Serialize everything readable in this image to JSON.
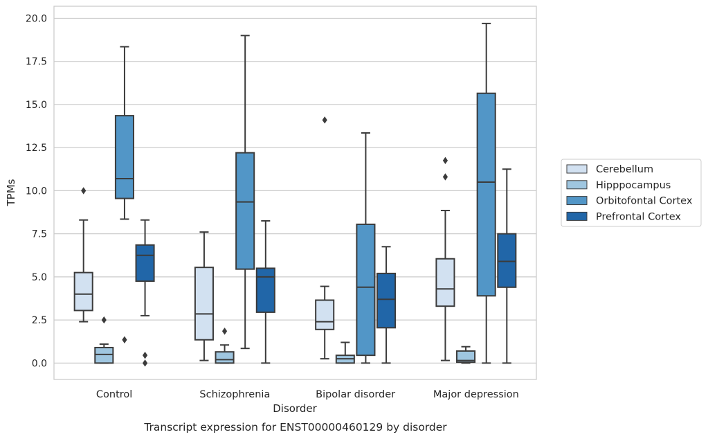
{
  "chart_data": {
    "type": "box",
    "xlabel": "Disorder",
    "ylabel": "TPMs",
    "caption": "Transcript expression for ENST00000460129 by disorder",
    "ylim": [
      -0.95,
      20.7
    ],
    "yticks": [
      "0.0",
      "2.5",
      "5.0",
      "7.5",
      "10.0",
      "12.5",
      "15.0",
      "17.5",
      "20.0"
    ],
    "grid": true,
    "legend_position": "right",
    "categories": [
      "Control",
      "Schizophrenia",
      "Bipolar disorder",
      "Major depression"
    ],
    "series": [
      {
        "name": "Cerebellum",
        "color": "#d2e1f1",
        "boxes": [
          {
            "whisker_low": 2.4,
            "q1": 3.05,
            "median": 4.0,
            "q3": 5.25,
            "whisker_high": 8.3,
            "outliers": [
              10.0
            ]
          },
          {
            "whisker_low": 0.15,
            "q1": 1.35,
            "median": 2.85,
            "q3": 5.55,
            "whisker_high": 7.6,
            "outliers": []
          },
          {
            "whisker_low": 0.25,
            "q1": 1.95,
            "median": 2.4,
            "q3": 3.65,
            "whisker_high": 4.45,
            "outliers": [
              14.1
            ]
          },
          {
            "whisker_low": 0.15,
            "q1": 3.3,
            "median": 4.3,
            "q3": 6.05,
            "whisker_high": 8.85,
            "outliers": [
              10.8,
              11.75
            ]
          }
        ]
      },
      {
        "name": "Hipppocampus",
        "color": "#9fc6e0",
        "boxes": [
          {
            "whisker_low": 0.0,
            "q1": 0.0,
            "median": 0.5,
            "q3": 0.9,
            "whisker_high": 1.1,
            "outliers": [
              2.5
            ]
          },
          {
            "whisker_low": 0.0,
            "q1": 0.0,
            "median": 0.2,
            "q3": 0.65,
            "whisker_high": 1.05,
            "outliers": [
              1.85
            ]
          },
          {
            "whisker_low": 0.0,
            "q1": 0.0,
            "median": 0.25,
            "q3": 0.45,
            "whisker_high": 1.2,
            "outliers": []
          },
          {
            "whisker_low": 0.0,
            "q1": 0.05,
            "median": 0.15,
            "q3": 0.7,
            "whisker_high": 0.95,
            "outliers": []
          }
        ]
      },
      {
        "name": "Orbitofontal Cortex",
        "color": "#5296c7",
        "boxes": [
          {
            "whisker_low": 8.35,
            "q1": 9.55,
            "median": 10.7,
            "q3": 14.35,
            "whisker_high": 18.35,
            "outliers": [
              1.35
            ]
          },
          {
            "whisker_low": 0.85,
            "q1": 5.45,
            "median": 9.35,
            "q3": 12.2,
            "whisker_high": 19.0,
            "outliers": []
          },
          {
            "whisker_low": 0.0,
            "q1": 0.45,
            "median": 4.4,
            "q3": 8.05,
            "whisker_high": 13.35,
            "outliers": []
          },
          {
            "whisker_low": 0.0,
            "q1": 3.9,
            "median": 10.5,
            "q3": 15.65,
            "whisker_high": 19.7,
            "outliers": []
          }
        ]
      },
      {
        "name": "Prefrontal Cortex",
        "color": "#2166a8",
        "boxes": [
          {
            "whisker_low": 2.75,
            "q1": 4.75,
            "median": 6.25,
            "q3": 6.85,
            "whisker_high": 8.3,
            "outliers": [
              0.45,
              0.0
            ]
          },
          {
            "whisker_low": 0.0,
            "q1": 2.95,
            "median": 5.0,
            "q3": 5.5,
            "whisker_high": 8.25,
            "outliers": []
          },
          {
            "whisker_low": 0.0,
            "q1": 2.05,
            "median": 3.7,
            "q3": 5.2,
            "whisker_high": 6.75,
            "outliers": []
          },
          {
            "whisker_low": 0.0,
            "q1": 4.4,
            "median": 5.9,
            "q3": 7.5,
            "whisker_high": 11.25,
            "outliers": []
          }
        ]
      }
    ]
  }
}
